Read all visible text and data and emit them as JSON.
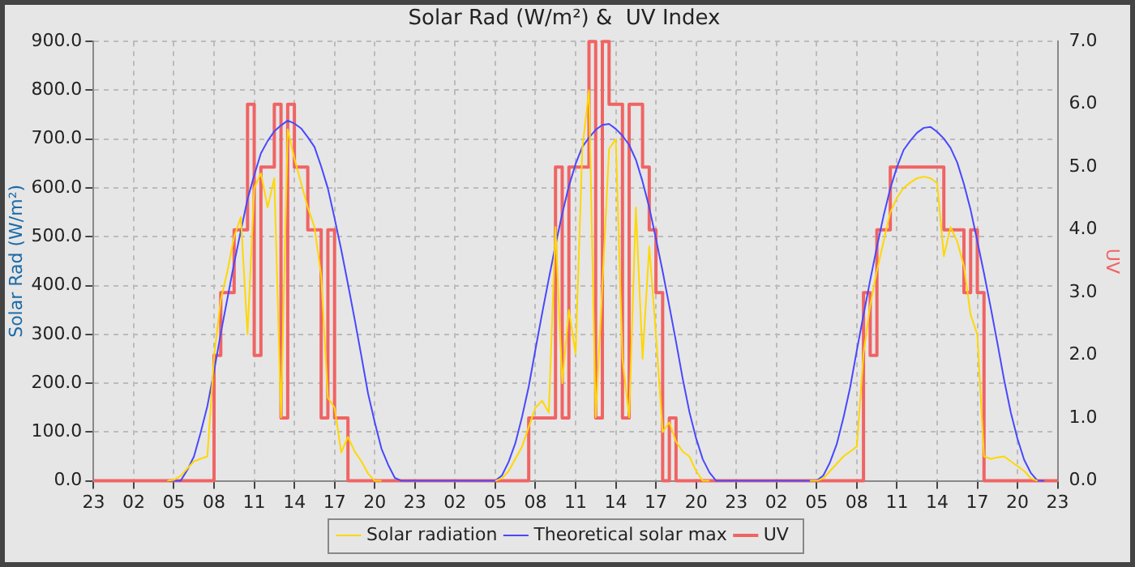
{
  "chart_data": {
    "type": "line",
    "title": "Solar Rad (W/m²) &  UV Index",
    "ylabel": "Solar Rad (W/m²)",
    "y2label": "UV",
    "categories": [
      "23",
      null,
      null,
      null,
      null,
      null,
      "02",
      null,
      null,
      null,
      null,
      null,
      "05",
      null,
      null,
      null,
      null,
      null,
      "08",
      null,
      null,
      null,
      null,
      null,
      "11",
      null,
      null,
      null,
      null,
      null,
      "14",
      null,
      null,
      null,
      null,
      null,
      "17",
      null,
      null,
      null,
      null,
      null,
      "20",
      null,
      null,
      null,
      null,
      null,
      "23",
      null,
      null,
      null,
      null,
      null,
      "02",
      null,
      null,
      null,
      null,
      null,
      "05",
      null,
      null,
      null,
      null,
      null,
      "08",
      null,
      null,
      null,
      null,
      null,
      "11",
      null,
      null,
      null,
      null,
      null,
      "14",
      null,
      null,
      null,
      null,
      null,
      "17",
      null,
      null,
      null,
      null,
      null,
      "20",
      null,
      null,
      null,
      null,
      null,
      "23",
      null,
      null,
      null,
      null,
      null,
      "02",
      null,
      null,
      null,
      null,
      null,
      "05",
      null,
      null,
      null,
      null,
      null,
      "08",
      null,
      null,
      null,
      null,
      null,
      "11",
      null,
      null,
      null,
      null,
      null,
      "14",
      null,
      null,
      null,
      null,
      null,
      "17",
      null,
      null,
      null,
      null,
      null,
      "20",
      null,
      null,
      null,
      null,
      null,
      "23"
    ],
    "ylim": [
      0,
      900
    ],
    "yticks": [
      {
        "value": 0,
        "label": "0.0"
      },
      {
        "value": 100,
        "label": "100.0"
      },
      {
        "value": 200,
        "label": "200.0"
      },
      {
        "value": 300,
        "label": "300.0"
      },
      {
        "value": 400,
        "label": "400.0"
      },
      {
        "value": 500,
        "label": "500.0"
      },
      {
        "value": 600,
        "label": "600.0"
      },
      {
        "value": 700,
        "label": "700.0"
      },
      {
        "value": 800,
        "label": "800.0"
      },
      {
        "value": 900,
        "label": "900.0"
      }
    ],
    "y2lim": [
      0,
      7
    ],
    "y2ticks": [
      {
        "value": 0,
        "label": "0.0"
      },
      {
        "value": 1,
        "label": "1.0"
      },
      {
        "value": 2,
        "label": "2.0"
      },
      {
        "value": 3,
        "label": "3.0"
      },
      {
        "value": 4,
        "label": "4.0"
      },
      {
        "value": 5,
        "label": "5.0"
      },
      {
        "value": 6,
        "label": "6.0"
      },
      {
        "value": 7,
        "label": "7.0"
      }
    ],
    "grid": true,
    "legend": "bottom",
    "marker": "none",
    "series": [
      {
        "name": "Solar radiation",
        "color": "#ffd700",
        "type": "line",
        "values": [
          null,
          null,
          null,
          null,
          null,
          null,
          null,
          null,
          null,
          null,
          null,
          0,
          2,
          10,
          25,
          40,
          45,
          50,
          255,
          370,
          430,
          500,
          540,
          300,
          600,
          630,
          560,
          620,
          130,
          720,
          660,
          610,
          560,
          520,
          420,
          170,
          150,
          58,
          90,
          60,
          40,
          15,
          0,
          0,
          null,
          null,
          null,
          null,
          null,
          null,
          null,
          null,
          null,
          null,
          null,
          null,
          null,
          null,
          null,
          null,
          0,
          5,
          20,
          45,
          70,
          110,
          150,
          164,
          140,
          520,
          200,
          350,
          260,
          680,
          800,
          130,
          400,
          680,
          700,
          250,
          130,
          560,
          250,
          480,
          300,
          100,
          120,
          80,
          60,
          50,
          20,
          0,
          0,
          null,
          null,
          null,
          null,
          null,
          null,
          null,
          null,
          null,
          null,
          null,
          null,
          null,
          null,
          0,
          0,
          5,
          20,
          35,
          50,
          60,
          70,
          260,
          360,
          430,
          490,
          550,
          580,
          600,
          611,
          620,
          623,
          620,
          610,
          460,
          520,
          490,
          440,
          340,
          300,
          50,
          45,
          48,
          50,
          40,
          30,
          20,
          5,
          0,
          null,
          null,
          null
        ]
      },
      {
        "name": "Theoretical solar max",
        "color": "#4848ff",
        "type": "line",
        "values": [
          null,
          null,
          null,
          null,
          null,
          null,
          null,
          null,
          null,
          null,
          null,
          0,
          0,
          0,
          22,
          50,
          99,
          153,
          225,
          302,
          374,
          446,
          512,
          577,
          626,
          671,
          696,
          716,
          728,
          738,
          732,
          722,
          704,
          684,
          644,
          599,
          538,
          473,
          403,
          331,
          256,
          179,
          120,
          66,
          33,
          6,
          0,
          0,
          0,
          0,
          0,
          0,
          0,
          0,
          0,
          0,
          0,
          0,
          0,
          0,
          0,
          11,
          39,
          77,
          131,
          193,
          269,
          343,
          414,
          483,
          547,
          604,
          649,
          684,
          703,
          719,
          729,
          731,
          721,
          707,
          688,
          658,
          613,
          560,
          496,
          429,
          358,
          285,
          209,
          141,
          87,
          44,
          17,
          0,
          0,
          0,
          0,
          0,
          0,
          0,
          0,
          0,
          0,
          0,
          0,
          0,
          0,
          0,
          0,
          11,
          38,
          75,
          129,
          191,
          267,
          340,
          411,
          479,
          543,
          599,
          643,
          678,
          697,
          713,
          723,
          725,
          715,
          701,
          682,
          652,
          608,
          555,
          491,
          425,
          355,
          282,
          207,
          140,
          86,
          43,
          16,
          0,
          0,
          null,
          null
        ]
      },
      {
        "name": "UV",
        "color": "#f06464",
        "type": "step",
        "axis": "y2",
        "values": [
          0,
          0,
          0,
          0,
          0,
          0,
          0,
          0,
          0,
          0,
          0,
          0,
          0,
          0,
          0,
          0,
          0,
          0,
          2,
          3,
          3,
          4,
          4,
          6,
          2,
          5,
          5,
          6,
          1,
          6,
          5,
          5,
          4,
          4,
          1,
          4,
          1,
          1,
          0,
          0,
          0,
          0,
          0,
          0,
          0,
          0,
          0,
          0,
          0,
          0,
          0,
          0,
          0,
          0,
          0,
          0,
          0,
          0,
          0,
          0,
          0,
          0,
          0,
          0,
          0,
          1,
          1,
          1,
          1,
          5,
          1,
          5,
          5,
          5,
          7,
          1,
          7,
          6,
          6,
          1,
          6,
          6,
          5,
          4,
          3,
          0,
          1,
          0,
          0,
          0,
          0,
          0,
          0,
          0,
          0,
          0,
          0,
          0,
          0,
          0,
          0,
          0,
          0,
          0,
          0,
          0,
          0,
          0,
          0,
          0,
          0,
          0,
          0,
          0,
          0,
          3,
          2,
          4,
          4,
          5,
          5,
          5,
          5,
          5,
          5,
          5,
          5,
          4,
          4,
          4,
          3,
          4,
          3,
          0,
          0,
          0,
          0,
          0,
          0,
          0,
          0,
          0,
          0,
          0,
          0
        ]
      }
    ]
  }
}
